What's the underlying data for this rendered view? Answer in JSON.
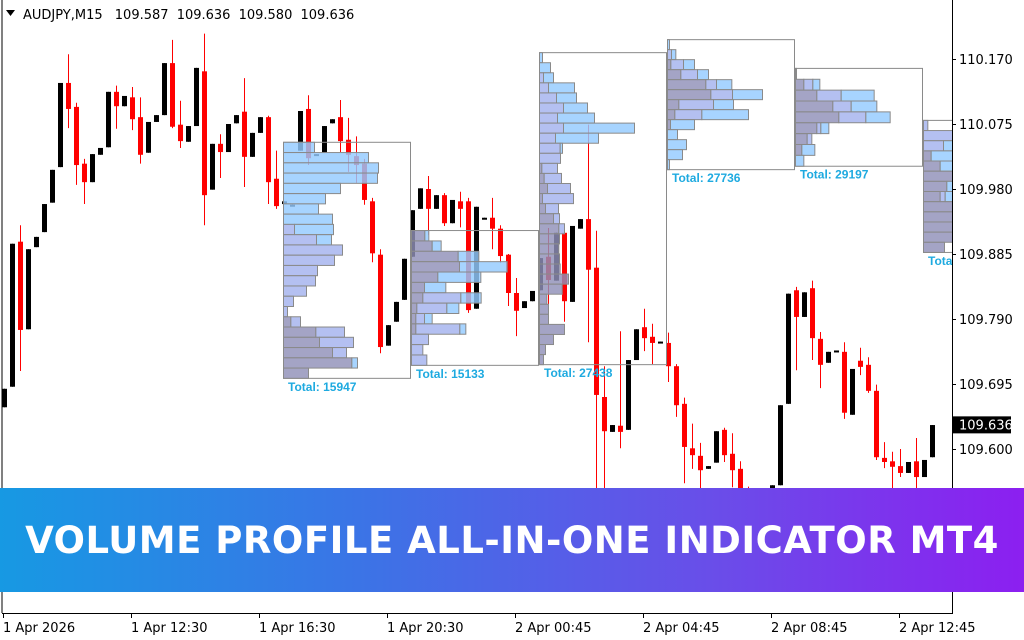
{
  "header": {
    "menu_icon": "triangle-down-icon",
    "symbol": "AUDJPY,M15",
    "open": "109.587",
    "high": "109.636",
    "low": "109.580",
    "close": "109.636"
  },
  "banner": {
    "text": "VOLUME PROFILE ALL-IN-ONE INDICATOR MT4",
    "gradient": [
      "#1799e3",
      "#8c1ff0"
    ]
  },
  "colors": {
    "bull": "#000000",
    "bear": "#ff0000",
    "profile_dark": "#9090b8",
    "profile_mid": "#a4b2ee",
    "profile_light": "#94caff",
    "profile_border": "#8a8a8a",
    "total_text": "#1eaae0"
  },
  "chart_data": {
    "type": "candlestick",
    "title": "AUDJPY,M15",
    "ylim": [
      109.41,
      110.26
    ],
    "grid": false,
    "price_ticks": [
      "110.170",
      "110.075",
      "109.980",
      "109.885",
      "109.790",
      "109.695",
      "109.600"
    ],
    "current_price": "109.636",
    "time_ticks": [
      {
        "bar": 0,
        "label": "1 Apr 2026"
      },
      {
        "bar": 16,
        "label": "1 Apr 12:30"
      },
      {
        "bar": 32,
        "label": "1 Apr 16:30"
      },
      {
        "bar": 48,
        "label": "1 Apr 20:30"
      },
      {
        "bar": 64,
        "label": "2 Apr 00:45"
      },
      {
        "bar": 80,
        "label": "2 Apr 04:45"
      },
      {
        "bar": 96,
        "label": "2 Apr 08:45"
      },
      {
        "bar": 112,
        "label": "2 Apr 12:45"
      }
    ],
    "ohlc": [
      [
        109.661,
        109.688,
        109.661,
        109.688
      ],
      [
        109.691,
        109.9,
        109.691,
        109.9
      ],
      [
        109.903,
        109.927,
        109.714,
        109.774
      ],
      [
        109.775,
        109.892,
        109.775,
        109.892
      ],
      [
        109.895,
        109.91,
        109.895,
        109.91
      ],
      [
        109.917,
        109.958,
        109.917,
        109.958
      ],
      [
        109.96,
        110.008,
        109.96,
        110.008
      ],
      [
        110.012,
        110.135,
        110.012,
        110.135
      ],
      [
        110.135,
        110.177,
        110.069,
        110.097
      ],
      [
        110.1,
        110.106,
        109.986,
        110.015
      ],
      [
        110.017,
        110.024,
        109.958,
        109.99
      ],
      [
        109.99,
        110.031,
        109.99,
        110.031
      ],
      [
        110.03,
        110.04,
        110.03,
        110.04
      ],
      [
        110.041,
        110.122,
        110.041,
        110.122
      ],
      [
        110.122,
        110.131,
        110.068,
        110.101
      ],
      [
        110.101,
        110.116,
        110.101,
        110.116
      ],
      [
        110.114,
        110.129,
        110.066,
        110.082
      ],
      [
        110.085,
        110.114,
        110.017,
        110.03
      ],
      [
        110.033,
        110.078,
        110.033,
        110.078
      ],
      [
        110.078,
        110.088,
        110.078,
        110.088
      ],
      [
        110.088,
        110.164,
        110.088,
        110.164
      ],
      [
        110.164,
        110.198,
        110.069,
        110.071
      ],
      [
        110.074,
        110.109,
        110.04,
        110.05
      ],
      [
        110.049,
        110.072,
        110.049,
        110.072
      ],
      [
        110.072,
        110.157,
        110.072,
        110.157
      ],
      [
        110.152,
        110.207,
        109.927,
        109.971
      ],
      [
        109.979,
        110.046,
        109.979,
        110.046
      ],
      [
        110.046,
        110.06,
        109.996,
        110.034
      ],
      [
        110.034,
        110.075,
        110.034,
        110.075
      ],
      [
        110.076,
        110.088,
        110.076,
        110.088
      ],
      [
        110.093,
        110.142,
        109.983,
        110.027
      ],
      [
        110.027,
        110.062,
        110.027,
        110.062
      ],
      [
        110.062,
        110.085,
        110.062,
        110.085
      ],
      [
        110.085,
        110.087,
        109.958,
        109.99
      ],
      [
        109.995,
        110.036,
        109.951,
        109.955
      ],
      [
        109.958,
        109.962,
        109.958,
        109.962
      ],
      [
        109.955,
        109.957,
        109.955,
        109.957
      ],
      [
        110.036,
        110.094,
        110.036,
        110.094
      ],
      [
        110.097,
        110.117,
        110.015,
        110.025
      ],
      [
        110.029,
        110.031,
        110.029,
        110.031
      ],
      [
        110.033,
        110.072,
        110.033,
        110.072
      ],
      [
        110.076,
        110.082,
        110.076,
        110.082
      ],
      [
        110.085,
        110.11,
        110.034,
        110.05
      ],
      [
        110.052,
        110.084,
        110.005,
        110.03
      ],
      [
        110.028,
        110.057,
        109.989,
        110.015
      ],
      [
        110.017,
        110.024,
        109.957,
        109.964
      ],
      [
        109.962,
        109.967,
        109.873,
        109.886
      ],
      [
        109.884,
        109.892,
        109.74,
        109.749
      ],
      [
        109.751,
        109.781,
        109.751,
        109.781
      ],
      [
        109.786,
        109.815,
        109.786,
        109.815
      ],
      [
        109.818,
        109.878,
        109.818,
        109.878
      ],
      [
        109.881,
        109.949,
        109.881,
        109.949
      ],
      [
        109.951,
        109.981,
        109.951,
        109.981
      ],
      [
        109.98,
        109.999,
        109.913,
        109.951
      ],
      [
        109.951,
        109.971,
        109.951,
        109.971
      ],
      [
        109.971,
        109.974,
        109.926,
        109.93
      ],
      [
        109.93,
        109.964,
        109.93,
        109.964
      ],
      [
        109.962,
        109.976,
        109.924,
        109.951
      ],
      [
        109.962,
        109.967,
        109.799,
        109.803
      ],
      [
        109.805,
        109.954,
        109.805,
        109.954
      ],
      [
        109.936,
        109.938,
        109.936,
        109.938
      ],
      [
        109.938,
        109.967,
        109.892,
        109.922
      ],
      [
        109.922,
        109.927,
        109.872,
        109.882
      ],
      [
        109.884,
        109.885,
        109.809,
        109.828
      ],
      [
        109.828,
        109.85,
        109.765,
        109.802
      ],
      [
        109.806,
        109.816,
        109.806,
        109.816
      ],
      [
        109.816,
        109.831,
        109.816,
        109.831
      ],
      [
        109.832,
        109.879,
        109.832,
        109.879
      ],
      [
        109.881,
        109.923,
        109.793,
        109.847
      ],
      [
        109.846,
        109.916,
        109.846,
        109.916
      ],
      [
        109.916,
        109.926,
        109.786,
        109.816
      ],
      [
        109.815,
        109.926,
        109.815,
        109.926
      ],
      [
        109.922,
        109.936,
        109.922,
        109.936
      ],
      [
        109.936,
        110.074,
        109.756,
        109.862
      ],
      [
        109.865,
        109.919,
        109.54,
        109.679
      ],
      [
        109.676,
        109.721,
        109.54,
        109.626
      ],
      [
        109.625,
        109.635,
        109.625,
        109.635
      ],
      [
        109.634,
        109.772,
        109.601,
        109.625
      ],
      [
        109.628,
        109.73,
        109.628,
        109.73
      ],
      [
        109.73,
        109.775,
        109.73,
        109.775
      ],
      [
        109.778,
        109.805,
        109.743,
        109.762
      ],
      [
        109.764,
        109.783,
        109.724,
        109.755
      ],
      [
        109.755,
        109.757,
        109.755,
        109.757
      ],
      [
        109.755,
        109.77,
        109.698,
        109.721
      ],
      [
        109.721,
        109.724,
        109.647,
        109.664
      ],
      [
        109.666,
        109.675,
        109.55,
        109.603
      ],
      [
        109.601,
        109.637,
        109.571,
        109.591
      ],
      [
        109.59,
        109.609,
        109.54,
        109.569
      ],
      [
        109.571,
        109.575,
        109.571,
        109.575
      ],
      [
        109.58,
        109.626,
        109.58,
        109.626
      ],
      [
        109.628,
        109.631,
        109.581,
        109.591
      ],
      [
        109.593,
        109.623,
        109.544,
        109.569
      ],
      [
        109.571,
        109.582,
        109.53,
        109.54
      ],
      [
        109.54,
        109.545,
        109.48,
        109.5
      ],
      [
        109.5,
        109.51,
        109.46,
        109.48
      ],
      [
        109.48,
        109.52,
        109.47,
        109.51
      ],
      [
        109.51,
        109.547,
        109.51,
        109.547
      ],
      [
        109.547,
        109.664,
        109.547,
        109.664
      ],
      [
        109.666,
        109.827,
        109.666,
        109.827
      ],
      [
        109.832,
        109.837,
        109.715,
        109.793
      ],
      [
        109.793,
        109.829,
        109.793,
        109.829
      ],
      [
        109.835,
        109.846,
        109.73,
        109.762
      ],
      [
        109.761,
        109.771,
        109.689,
        109.723
      ],
      [
        109.726,
        109.742,
        109.726,
        109.742
      ],
      [
        109.742,
        109.744,
        109.742,
        109.744
      ],
      [
        109.742,
        109.756,
        109.644,
        109.653
      ],
      [
        109.65,
        109.717,
        109.65,
        109.717
      ],
      [
        109.729,
        109.748,
        109.708,
        109.72
      ],
      [
        109.723,
        109.734,
        109.682,
        109.685
      ],
      [
        109.685,
        109.694,
        109.584,
        109.588
      ],
      [
        109.587,
        109.61,
        109.572,
        109.581
      ],
      [
        109.582,
        109.596,
        109.543,
        109.574
      ],
      [
        109.575,
        109.6,
        109.559,
        109.565
      ],
      [
        109.565,
        109.581,
        109.565,
        109.581
      ],
      [
        109.582,
        109.616,
        109.543,
        109.559
      ],
      [
        109.559,
        109.584,
        109.559,
        109.584
      ],
      [
        109.588,
        109.635,
        109.588,
        109.635
      ]
    ],
    "volume_profiles": [
      {
        "start_bar": 35,
        "bars": 16,
        "price_high": 110.049,
        "price_low": 109.704,
        "total": "Total: 15947",
        "rows": [
          [
            0,
            0,
            93
          ],
          [
            0,
            0,
            255
          ],
          [
            0,
            0,
            285
          ],
          [
            0,
            0,
            282
          ],
          [
            0,
            0,
            171
          ],
          [
            0,
            0,
            126
          ],
          [
            0,
            0,
            105
          ],
          [
            0,
            0,
            147
          ],
          [
            0,
            33,
            117
          ],
          [
            0,
            99,
            45
          ],
          [
            0,
            177,
            0
          ],
          [
            0,
            153,
            0
          ],
          [
            0,
            102,
            0
          ],
          [
            0,
            96,
            0
          ],
          [
            0,
            69,
            0
          ],
          [
            0,
            30,
            0
          ],
          [
            0,
            12,
            0
          ],
          [
            22,
            29,
            0
          ],
          [
            97,
            86,
            0
          ],
          [
            108,
            102,
            0
          ],
          [
            147,
            42,
            0
          ],
          [
            205,
            0,
            17
          ],
          [
            75,
            0,
            0
          ]
        ]
      },
      {
        "start_bar": 51,
        "bars": 16,
        "price_high": 109.92,
        "price_low": 109.723,
        "total": "Total: 15133",
        "rows": [
          [
            40,
            0,
            12
          ],
          [
            62,
            0,
            27
          ],
          [
            140,
            0,
            62
          ],
          [
            144,
            0,
            143
          ],
          [
            79,
            0,
            129
          ],
          [
            39,
            0,
            64
          ],
          [
            34,
            114,
            61
          ],
          [
            16,
            90,
            36
          ],
          [
            13,
            26,
            23
          ],
          [
            13,
            132,
            18
          ],
          [
            0,
            51,
            0
          ],
          [
            0,
            34,
            0
          ],
          [
            0,
            46,
            0
          ]
        ]
      },
      {
        "start_bar": 67,
        "bars": 16,
        "price_high": 110.18,
        "price_low": 109.724,
        "total": "Total: 27438",
        "rows": [
          [
            0,
            0,
            9
          ],
          [
            0,
            0,
            33
          ],
          [
            0,
            12,
            30
          ],
          [
            0,
            27,
            78
          ],
          [
            0,
            51,
            60
          ],
          [
            0,
            72,
            72
          ],
          [
            0,
            54,
            111
          ],
          [
            0,
            72,
            213
          ],
          [
            0,
            48,
            129
          ],
          [
            0,
            62,
            7
          ],
          [
            0,
            63,
            0
          ],
          [
            7,
            47,
            0
          ],
          [
            14,
            52,
            0
          ],
          [
            24,
            69,
            0
          ],
          [
            9,
            93,
            0
          ],
          [
            18,
            39,
            0
          ],
          [
            42,
            18,
            0
          ],
          [
            58,
            17,
            0
          ],
          [
            60,
            0,
            0
          ],
          [
            58,
            0,
            0
          ],
          [
            60,
            0,
            0
          ],
          [
            62,
            0,
            0
          ],
          [
            87,
            0,
            0
          ],
          [
            68,
            0,
            0
          ],
          [
            22,
            0,
            0
          ],
          [
            27,
            0,
            0
          ],
          [
            27,
            0,
            0
          ],
          [
            75,
            0,
            0
          ],
          [
            42,
            0,
            0
          ],
          [
            18,
            0,
            0
          ],
          [
            12,
            0,
            0
          ]
        ]
      },
      {
        "start_bar": 83,
        "bars": 16,
        "price_high": 110.199,
        "price_low": 110.009,
        "total": "Total: 27736",
        "rows": [
          [
            0,
            0,
            6
          ],
          [
            0,
            12,
            13
          ],
          [
            10,
            38,
            33
          ],
          [
            40,
            50,
            33
          ],
          [
            115,
            32,
            46
          ],
          [
            130,
            65,
            90
          ],
          [
            34,
            104,
            60
          ],
          [
            22,
            81,
            140
          ],
          [
            9,
            0,
            72
          ],
          [
            0,
            0,
            30
          ],
          [
            0,
            0,
            57
          ],
          [
            0,
            0,
            45
          ],
          [
            0,
            0,
            6
          ]
        ]
      },
      {
        "start_bar": 99,
        "bars": 16,
        "price_high": 110.157,
        "price_low": 110.014,
        "total": "Total: 29197",
        "rows": [
          [
            0,
            0,
            3
          ],
          [
            25,
            27,
            21
          ],
          [
            64,
            73,
            99
          ],
          [
            112,
            55,
            77
          ],
          [
            130,
            81,
            73
          ],
          [
            64,
            12,
            24
          ],
          [
            35,
            14,
            0
          ],
          [
            19,
            0,
            39
          ],
          [
            0,
            0,
            25
          ]
        ]
      },
      {
        "start_bar": 115,
        "bars": 16,
        "price_high": 110.081,
        "price_low": 109.888,
        "total": "Total",
        "rows": [
          [
            0,
            13,
            0
          ],
          [
            0,
            90,
            0
          ],
          [
            0,
            60,
            40
          ],
          [
            23,
            0,
            80
          ],
          [
            50,
            0,
            60
          ],
          [
            100,
            0,
            0
          ],
          [
            70,
            0,
            20
          ],
          [
            50,
            15,
            30
          ],
          [
            100,
            0,
            0
          ],
          [
            100,
            0,
            0
          ],
          [
            100,
            0,
            0
          ],
          [
            100,
            0,
            0
          ],
          [
            63,
            0,
            0
          ]
        ]
      }
    ]
  }
}
